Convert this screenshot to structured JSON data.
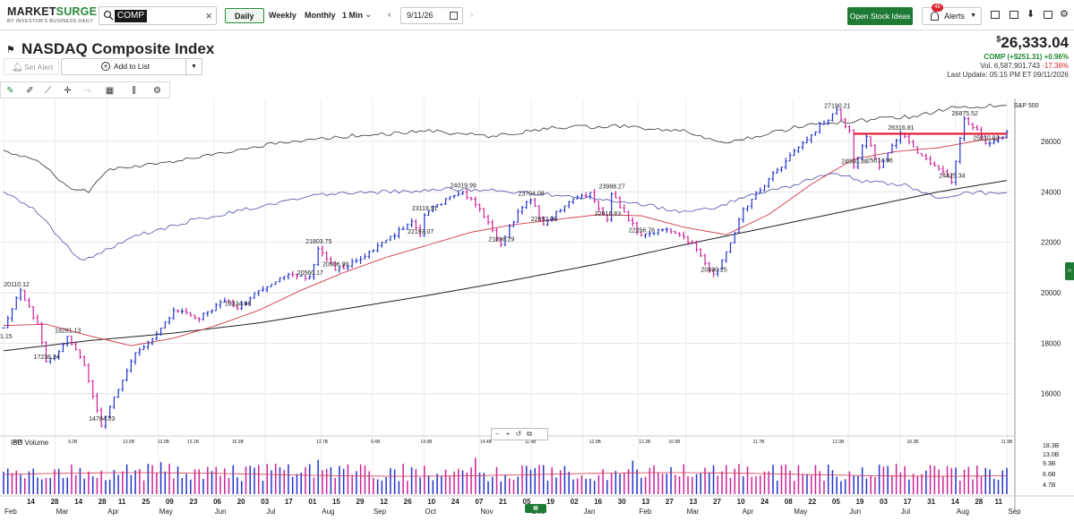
{
  "brand": {
    "name_main": "MARKET",
    "name_accent": "SURGE",
    "tagline": "BY INVESTOR'S BUSINESS DAILY"
  },
  "search": {
    "symbol": "COMP"
  },
  "timeframes": {
    "daily": "Daily",
    "weekly": "Weekly",
    "monthly": "Monthly",
    "intraday": "1 Min"
  },
  "date_picker": {
    "value": "9/11/26"
  },
  "toolbar": {
    "open_stock_ideas": "Open Stock Ideas",
    "alerts_label": "Alerts",
    "alerts_count": "49"
  },
  "header": {
    "title": "NASDAQ Composite Index",
    "set_alert": "Set Alert",
    "add_to_list": "Add to List"
  },
  "quote": {
    "currency": "$",
    "price": "26,333.04",
    "change_line": "COMP  (+$251.31) +0.96%",
    "volume_label": "Vol. 6,587,901,743",
    "volume_change": "-17.36%",
    "last_update": "Last Update: 05:15 PM ET 09/11/2026"
  },
  "chart_data": {
    "type": "candlestick",
    "symbol": "COMP",
    "benchmark_label": "S&P 500",
    "y_ticks": [
      "26000",
      "24000",
      "22000",
      "20000",
      "18000",
      "16000"
    ],
    "y_ticks_values": [
      26000,
      24000,
      22000,
      20000,
      18000,
      16000
    ],
    "ylim": [
      14500,
      27700
    ],
    "price_labels": [
      {
        "t": 0,
        "v": 18050,
        "text": "1.15"
      },
      {
        "t": 3,
        "v": 20110.12,
        "text": "20110.12"
      },
      {
        "t": 10,
        "v": 17238.24,
        "text": "17238.24"
      },
      {
        "t": 15,
        "v": 18281.13,
        "text": "18281.13"
      },
      {
        "t": 23,
        "v": 14784.03,
        "text": "14784.03"
      },
      {
        "t": 55,
        "v": 19334.98,
        "text": "19334.98"
      },
      {
        "t": 72,
        "v": 20560.17,
        "text": "20560.17"
      },
      {
        "t": 74,
        "v": 21803.75,
        "text": "21803.75"
      },
      {
        "t": 78,
        "v": 20906.99,
        "text": "20906.99"
      },
      {
        "t": 98,
        "v": 22193.07,
        "text": "22193.07"
      },
      {
        "t": 99,
        "v": 23119.91,
        "text": "23119.91"
      },
      {
        "t": 108,
        "v": 24019.99,
        "text": "24019.99"
      },
      {
        "t": 117,
        "v": 21898.29,
        "text": "21898.29"
      },
      {
        "t": 124,
        "v": 23704.08,
        "text": "23704.08"
      },
      {
        "t": 127,
        "v": 22692.0,
        "text": "22692.00"
      },
      {
        "t": 142,
        "v": 22916.83,
        "text": "22916.83"
      },
      {
        "t": 143,
        "v": 23988.27,
        "text": "23988.27"
      },
      {
        "t": 150,
        "v": 22256.76,
        "text": "22256.76"
      },
      {
        "t": 167,
        "v": 20690.25,
        "text": "20690.25"
      },
      {
        "t": 196,
        "v": 27190.21,
        "text": "27190.21"
      },
      {
        "t": 200,
        "v": 24980.38,
        "text": "24980.38"
      },
      {
        "t": 206,
        "v": 25014.96,
        "text": "25014.96"
      },
      {
        "t": 211,
        "v": 26316.81,
        "text": "26316.81"
      },
      {
        "t": 223,
        "v": 24425.34,
        "text": "24425.34"
      },
      {
        "t": 226,
        "v": 26875.52,
        "text": "26875.52"
      },
      {
        "t": 231,
        "v": 25910.82,
        "text": "25910.82"
      }
    ],
    "pivots": [
      [
        0,
        18600
      ],
      [
        4,
        20110
      ],
      [
        8,
        18700
      ],
      [
        10,
        17238
      ],
      [
        13,
        17700
      ],
      [
        15,
        18281
      ],
      [
        19,
        17100
      ],
      [
        23,
        14784
      ],
      [
        27,
        16200
      ],
      [
        31,
        17600
      ],
      [
        36,
        18300
      ],
      [
        40,
        19300
      ],
      [
        46,
        19000
      ],
      [
        52,
        19700
      ],
      [
        55,
        19335
      ],
      [
        60,
        20100
      ],
      [
        66,
        20700
      ],
      [
        72,
        20560
      ],
      [
        74,
        21804
      ],
      [
        78,
        20907
      ],
      [
        84,
        21300
      ],
      [
        90,
        22100
      ],
      [
        96,
        22800
      ],
      [
        98,
        22193
      ],
      [
        99,
        23120
      ],
      [
        104,
        23700
      ],
      [
        108,
        24020
      ],
      [
        112,
        23300
      ],
      [
        117,
        21898
      ],
      [
        121,
        23200
      ],
      [
        124,
        23704
      ],
      [
        127,
        22692
      ],
      [
        133,
        23600
      ],
      [
        138,
        23900
      ],
      [
        142,
        22917
      ],
      [
        143,
        23988
      ],
      [
        147,
        22900
      ],
      [
        150,
        22257
      ],
      [
        154,
        22500
      ],
      [
        158,
        22400
      ],
      [
        162,
        21900
      ],
      [
        167,
        20690
      ],
      [
        171,
        21900
      ],
      [
        174,
        23300
      ],
      [
        180,
        24500
      ],
      [
        186,
        25600
      ],
      [
        192,
        26600
      ],
      [
        196,
        27190
      ],
      [
        199,
        26400
      ],
      [
        200,
        24980
      ],
      [
        203,
        26200
      ],
      [
        206,
        25015
      ],
      [
        211,
        26317
      ],
      [
        214,
        25700
      ],
      [
        218,
        25200
      ],
      [
        223,
        24425
      ],
      [
        226,
        26876
      ],
      [
        229,
        26500
      ],
      [
        231,
        25911
      ],
      [
        236,
        26333
      ]
    ],
    "n_bars": 237,
    "sma50_pivots": [
      [
        0,
        18700
      ],
      [
        10,
        18750
      ],
      [
        20,
        18300
      ],
      [
        30,
        17900
      ],
      [
        40,
        18200
      ],
      [
        50,
        18700
      ],
      [
        60,
        19300
      ],
      [
        70,
        20100
      ],
      [
        80,
        20800
      ],
      [
        90,
        21400
      ],
      [
        100,
        21900
      ],
      [
        110,
        22400
      ],
      [
        120,
        22700
      ],
      [
        130,
        22900
      ],
      [
        140,
        23100
      ],
      [
        150,
        23050
      ],
      [
        160,
        22600
      ],
      [
        170,
        22300
      ],
      [
        180,
        23100
      ],
      [
        190,
        24300
      ],
      [
        200,
        25300
      ],
      [
        210,
        25600
      ],
      [
        220,
        25750
      ],
      [
        230,
        26050
      ],
      [
        236,
        26150
      ]
    ],
    "sma200_pivots": [
      [
        0,
        17700
      ],
      [
        20,
        18100
      ],
      [
        40,
        18400
      ],
      [
        60,
        18800
      ],
      [
        80,
        19350
      ],
      [
        100,
        19900
      ],
      [
        120,
        20500
      ],
      [
        140,
        21150
      ],
      [
        160,
        21900
      ],
      [
        180,
        22600
      ],
      [
        200,
        23300
      ],
      [
        220,
        24000
      ],
      [
        236,
        24450
      ]
    ],
    "sp500_pivots": [
      [
        0,
        25600
      ],
      [
        8,
        25300
      ],
      [
        15,
        24200
      ],
      [
        20,
        24000
      ],
      [
        25,
        24900
      ],
      [
        35,
        25100
      ],
      [
        50,
        25500
      ],
      [
        65,
        25950
      ],
      [
        80,
        26200
      ],
      [
        100,
        26400
      ],
      [
        115,
        26200
      ],
      [
        130,
        26550
      ],
      [
        145,
        26600
      ],
      [
        160,
        26400
      ],
      [
        170,
        25900
      ],
      [
        180,
        26300
      ],
      [
        190,
        26700
      ],
      [
        200,
        26800
      ],
      [
        215,
        27000
      ],
      [
        225,
        27400
      ],
      [
        236,
        27400
      ]
    ],
    "rs_pivots": [
      [
        0,
        24000
      ],
      [
        8,
        23200
      ],
      [
        12,
        22400
      ],
      [
        18,
        21300
      ],
      [
        22,
        21500
      ],
      [
        30,
        22200
      ],
      [
        45,
        22900
      ],
      [
        60,
        23400
      ],
      [
        75,
        23900
      ],
      [
        90,
        24000
      ],
      [
        105,
        24100
      ],
      [
        120,
        24000
      ],
      [
        135,
        23800
      ],
      [
        150,
        23500
      ],
      [
        160,
        23200
      ],
      [
        168,
        23350
      ],
      [
        175,
        23900
      ],
      [
        185,
        24200
      ],
      [
        195,
        24800
      ],
      [
        202,
        24400
      ],
      [
        212,
        24300
      ],
      [
        220,
        23700
      ],
      [
        226,
        24000
      ],
      [
        236,
        23900
      ]
    ],
    "resistance_line": {
      "t_start": 200,
      "t_end": 236,
      "v": 26300
    },
    "x_ticks": [
      {
        "t": 7,
        "label": "14"
      },
      {
        "t": 13,
        "label": "28"
      },
      {
        "t": 19,
        "label": "14"
      },
      {
        "t": 25,
        "label": "28"
      },
      {
        "t": 30,
        "label": "11"
      },
      {
        "t": 36,
        "label": "25"
      },
      {
        "t": 42,
        "label": "09"
      },
      {
        "t": 48,
        "label": "23"
      },
      {
        "t": 54,
        "label": "06"
      },
      {
        "t": 60,
        "label": "20"
      },
      {
        "t": 66,
        "label": "03"
      },
      {
        "t": 72,
        "label": "17"
      },
      {
        "t": 78,
        "label": "01"
      },
      {
        "t": 84,
        "label": "15"
      },
      {
        "t": 90,
        "label": "29"
      },
      {
        "t": 96,
        "label": "12"
      },
      {
        "t": 102,
        "label": "26"
      },
      {
        "t": 108,
        "label": "10"
      },
      {
        "t": 114,
        "label": "24"
      },
      {
        "t": 120,
        "label": "07"
      },
      {
        "t": 126,
        "label": "21"
      },
      {
        "t": 132,
        "label": "05"
      },
      {
        "t": 138,
        "label": "19"
      },
      {
        "t": 144,
        "label": "02"
      },
      {
        "t": 150,
        "label": "16"
      },
      {
        "t": 156,
        "label": "30"
      },
      {
        "t": 162,
        "label": "13"
      },
      {
        "t": 168,
        "label": "27"
      },
      {
        "t": 174,
        "label": "13"
      },
      {
        "t": 180,
        "label": "27"
      },
      {
        "t": 186,
        "label": "10"
      },
      {
        "t": 192,
        "label": "24"
      },
      {
        "t": 198,
        "label": "08"
      },
      {
        "t": 204,
        "label": "22"
      },
      {
        "t": 210,
        "label": "05"
      },
      {
        "t": 216,
        "label": "19"
      },
      {
        "t": 222,
        "label": "03"
      },
      {
        "t": 228,
        "label": "17"
      },
      {
        "t": 234,
        "label": "31"
      },
      {
        "t": 240,
        "label": "14"
      },
      {
        "t": 246,
        "label": "28"
      },
      {
        "t": 251,
        "label": "11"
      }
    ],
    "month_labels": [
      {
        "t": 0,
        "label": "Feb"
      },
      {
        "t": 13,
        "label": "Mar"
      },
      {
        "t": 26,
        "label": "Apr"
      },
      {
        "t": 39,
        "label": "May"
      },
      {
        "t": 53,
        "label": "Jun"
      },
      {
        "t": 66,
        "label": "Jul"
      },
      {
        "t": 80,
        "label": "Aug"
      },
      {
        "t": 93,
        "label": "Sep"
      },
      {
        "t": 106,
        "label": "Oct"
      },
      {
        "t": 120,
        "label": "Nov"
      },
      {
        "t": 133,
        "label": "Dec"
      },
      {
        "t": 146,
        "label": "Jan"
      },
      {
        "t": 160,
        "label": "Feb"
      },
      {
        "t": 172,
        "label": "Mar"
      },
      {
        "t": 186,
        "label": "Apr"
      },
      {
        "t": 199,
        "label": "May"
      },
      {
        "t": 213,
        "label": "Jun"
      },
      {
        "t": 226,
        "label": "Jul"
      },
      {
        "t": 240,
        "label": "Aug"
      },
      {
        "t": 253,
        "label": "Sep"
      }
    ],
    "volume": {
      "label": "IBD Volume",
      "y_ticks": [
        "18.3B",
        "13.0B",
        "9.3B",
        "6.6B",
        "4.7B"
      ],
      "annotations": [
        {
          "t": 2,
          "text": "9.5B"
        },
        {
          "t": 13,
          "text": "9.2B"
        },
        {
          "t": 24,
          "text": "13.5B"
        },
        {
          "t": 31,
          "text": "13.0B"
        },
        {
          "t": 37,
          "text": "13.1B"
        },
        {
          "t": 46,
          "text": "16.3B"
        },
        {
          "t": 63,
          "text": "12.7B"
        },
        {
          "t": 74,
          "text": "9.4B"
        },
        {
          "t": 84,
          "text": "14.6B"
        },
        {
          "t": 96,
          "text": "14.4B"
        },
        {
          "t": 105,
          "text": "11.4B"
        },
        {
          "t": 118,
          "text": "12.9B"
        },
        {
          "t": 128,
          "text": "12.2B"
        },
        {
          "t": 134,
          "text": "10.9B"
        },
        {
          "t": 151,
          "text": "11.7B"
        },
        {
          "t": 167,
          "text": "12.0B"
        },
        {
          "t": 182,
          "text": "18.3B"
        },
        {
          "t": 201,
          "text": "11.9B"
        }
      ]
    }
  }
}
